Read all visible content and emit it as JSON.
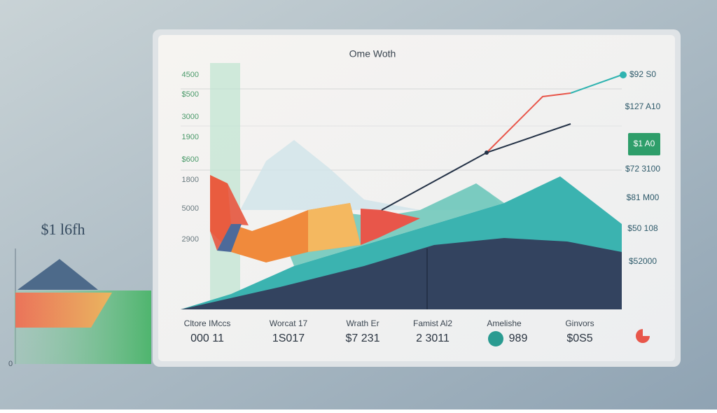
{
  "header": {
    "title": "Ome Woth"
  },
  "left_labels": [
    "4500",
    "$500",
    "3000",
    "1900",
    "$600",
    "1800",
    "5000",
    "2900"
  ],
  "right_labels": [
    "$92 S0",
    "$127 A10",
    "$1 A0",
    "$72 3100",
    "$81 M00",
    "$50 108",
    "$52000"
  ],
  "side_panel": {
    "title": "$1 l6fh",
    "axis": [
      "0"
    ]
  },
  "footer": [
    {
      "label": "Cltore IMccs",
      "value": "000 11"
    },
    {
      "label": "Worcat 17",
      "value": "1S017"
    },
    {
      "label": "Wrath Er",
      "value": "$7 231"
    },
    {
      "label": "Famist Al2",
      "value": "2 3011"
    },
    {
      "label": "Amelishe",
      "value": "989"
    },
    {
      "label": "Ginvors",
      "value": "$0S5"
    }
  ]
}
